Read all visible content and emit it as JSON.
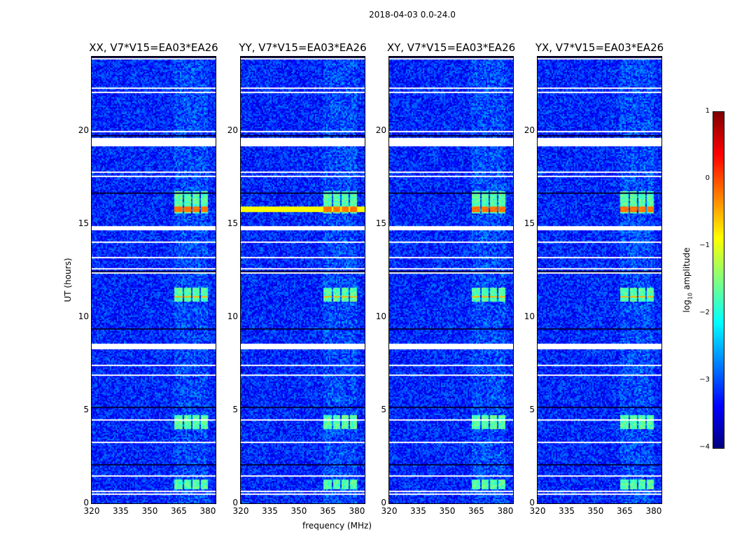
{
  "chart_data": {
    "type": "heatmap",
    "title": "2018-04-03 0.0-24.0",
    "xlabel": "frequency (MHz)",
    "ylabel": "UT (hours)",
    "xlim": [
      320,
      384
    ],
    "ylim": [
      0,
      24
    ],
    "xticks": [
      "320",
      "335",
      "350",
      "365",
      "380"
    ],
    "yticks": [
      "0",
      "5",
      "10",
      "15",
      "20"
    ],
    "panels": [
      {
        "title": "XX, V7*V15=EA03*EA26",
        "rfi_line_strength": -0.3
      },
      {
        "title": "YY, V7*V15=EA03*EA26",
        "rfi_line_strength": -0.9
      },
      {
        "title": "XY, V7*V15=EA03*EA26",
        "rfi_line_strength": -0.6
      },
      {
        "title": "YX, V7*V15=EA03*EA26",
        "rfi_line_strength": -0.6
      }
    ],
    "background_log_amplitude": -3.2,
    "rfi_bands_mhz": [
      [
        362.5,
        366.5
      ],
      [
        367.5,
        371
      ],
      [
        371.5,
        375
      ],
      [
        376,
        379.5
      ]
    ],
    "flagged_hours": [
      [
        19.2,
        19.7
      ],
      [
        8.35,
        8.65
      ],
      [
        14.7,
        14.95
      ],
      [
        0.5,
        0.55
      ],
      [
        0.65,
        0.7
      ],
      [
        1.5,
        1.55
      ],
      [
        1.6,
        1.65
      ],
      [
        3.3,
        3.35
      ],
      [
        3.55,
        3.6
      ],
      [
        4.5,
        4.55
      ],
      [
        5.8,
        5.85
      ],
      [
        6.9,
        6.95
      ],
      [
        7.4,
        7.45
      ],
      [
        7.6,
        7.65
      ],
      [
        12.4,
        12.45
      ],
      [
        12.6,
        12.65
      ],
      [
        13.2,
        13.25
      ],
      [
        14.05,
        14.1
      ],
      [
        15.5,
        15.55
      ],
      [
        17.6,
        17.65
      ],
      [
        17.8,
        17.85
      ],
      [
        18.0,
        18.05
      ],
      [
        18.6,
        18.65
      ],
      [
        20.0,
        20.05
      ],
      [
        20.4,
        20.45
      ],
      [
        22.1,
        22.15
      ],
      [
        22.3,
        22.35
      ],
      [
        23.9,
        23.95
      ]
    ],
    "colorbar": {
      "label": "log10 amplitude",
      "label_main": "log",
      "label_sub": "10",
      "label_rest": " amplitude",
      "ticks": [
        "1",
        "0",
        "−1",
        "−2",
        "−3",
        "−4"
      ],
      "range": [
        -4,
        1
      ],
      "colormap": "jet"
    }
  }
}
